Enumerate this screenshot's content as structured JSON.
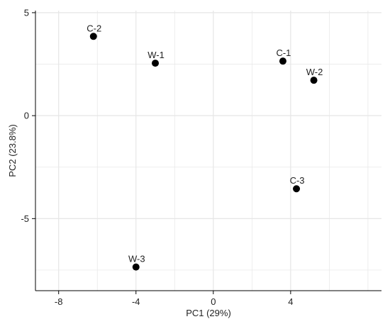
{
  "chart_data": {
    "type": "scatter",
    "title": "",
    "xlabel": "PC1 (29%)",
    "ylabel": "PC2 (23.8%)",
    "xlim": [
      -9.2,
      8.7
    ],
    "ylim": [
      -8.5,
      5.1
    ],
    "xticks": [
      -8,
      -4,
      0,
      4
    ],
    "xtick_labels": [
      "-8",
      "-4",
      "0",
      "4"
    ],
    "yticks": [
      -5,
      0,
      5
    ],
    "ytick_labels": [
      "-5",
      "0",
      "5"
    ],
    "grid": true,
    "legend": "none",
    "points": [
      {
        "label": "C-2",
        "x": -6.2,
        "y": 3.85
      },
      {
        "label": "W-1",
        "x": -3.0,
        "y": 2.55
      },
      {
        "label": "C-1",
        "x": 3.6,
        "y": 2.65
      },
      {
        "label": "W-2",
        "x": 5.2,
        "y": 1.72
      },
      {
        "label": "C-3",
        "x": 4.3,
        "y": -3.55
      },
      {
        "label": "W-3",
        "x": -4.0,
        "y": -7.35
      }
    ],
    "colors": {
      "point": "#000000",
      "grid": "#e6e6e6",
      "axis": "#000000"
    }
  }
}
